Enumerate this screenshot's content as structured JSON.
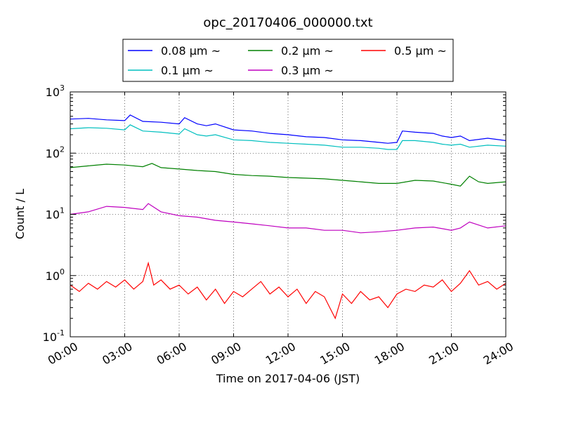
{
  "chart_data": {
    "type": "line",
    "title": "opc_20170406_000000.txt",
    "xlabel": "Time on 2017-04-06 (JST)",
    "ylabel": "Count / L",
    "x_ticks": [
      "00:00",
      "03:00",
      "06:00",
      "09:00",
      "12:00",
      "15:00",
      "18:00",
      "21:00",
      "24:00"
    ],
    "xlim_hours": [
      0,
      24
    ],
    "y_scale": "log",
    "ylim": [
      0.1,
      1000
    ],
    "y_ticks": [
      {
        "value": 0.1,
        "base": "10",
        "exp": "-1"
      },
      {
        "value": 1,
        "base": "10",
        "exp": "0"
      },
      {
        "value": 10,
        "base": "10",
        "exp": "1"
      },
      {
        "value": 100,
        "base": "10",
        "exp": "2"
      },
      {
        "value": 1000,
        "base": "10",
        "exp": "3"
      }
    ],
    "grid": true,
    "legend": {
      "placement": "top-center",
      "entries": [
        {
          "label": "0.08 μm ~",
          "color": "#0000ff"
        },
        {
          "label": "0.2 μm ~",
          "color": "#008000"
        },
        {
          "label": "0.5 μm ~",
          "color": "#ff0000"
        },
        {
          "label": "0.1 μm ~",
          "color": "#00bfbf"
        },
        {
          "label": "0.3 μm ~",
          "color": "#bf00bf"
        }
      ]
    },
    "series": [
      {
        "name": "0.08 μm ~",
        "color": "#0000ff",
        "x": [
          0,
          1,
          2,
          3,
          3.3,
          4,
          5,
          6,
          6.3,
          7,
          7.5,
          8,
          9,
          10,
          11,
          12,
          13,
          14,
          15,
          16,
          17,
          17.5,
          18,
          18.3,
          19,
          20,
          20.5,
          21,
          21.5,
          22,
          23,
          24
        ],
        "y": [
          360,
          370,
          350,
          340,
          420,
          330,
          320,
          300,
          380,
          300,
          280,
          300,
          240,
          230,
          210,
          200,
          185,
          180,
          165,
          160,
          150,
          145,
          150,
          230,
          220,
          210,
          190,
          180,
          190,
          160,
          175,
          160
        ]
      },
      {
        "name": "0.1 μm ~",
        "color": "#00bfbf",
        "x": [
          0,
          1,
          2,
          3,
          3.3,
          4,
          5,
          6,
          6.3,
          7,
          7.5,
          8,
          9,
          10,
          11,
          12,
          13,
          14,
          15,
          16,
          17,
          17.5,
          18,
          18.3,
          19,
          20,
          20.5,
          21,
          21.5,
          22,
          23,
          24
        ],
        "y": [
          250,
          260,
          255,
          240,
          290,
          230,
          220,
          205,
          250,
          200,
          190,
          200,
          165,
          160,
          150,
          145,
          140,
          135,
          125,
          125,
          120,
          115,
          115,
          160,
          160,
          150,
          140,
          135,
          140,
          125,
          135,
          130
        ]
      },
      {
        "name": "0.2 μm ~",
        "color": "#008000",
        "x": [
          0,
          1,
          2,
          3,
          4,
          4.5,
          5,
          6,
          7,
          8,
          9,
          10,
          11,
          12,
          13,
          14,
          15,
          16,
          17,
          18,
          19,
          20,
          21,
          21.5,
          22,
          22.5,
          23,
          24
        ],
        "y": [
          58,
          62,
          66,
          64,
          60,
          68,
          58,
          55,
          52,
          50,
          45,
          43,
          42,
          40,
          39,
          38,
          36,
          34,
          32,
          32,
          36,
          35,
          31,
          29,
          42,
          34,
          32,
          34
        ]
      },
      {
        "name": "0.3 μm ~",
        "color": "#bf00bf",
        "x": [
          0,
          1,
          2,
          3,
          4,
          4.3,
          5,
          6,
          7,
          8,
          9,
          10,
          11,
          12,
          13,
          14,
          15,
          16,
          17,
          18,
          19,
          20,
          21,
          21.5,
          22,
          23,
          24
        ],
        "y": [
          10,
          11,
          13.5,
          13,
          12,
          15,
          11,
          9.5,
          9,
          8,
          7.5,
          7,
          6.5,
          6,
          6,
          5.5,
          5.5,
          5,
          5.2,
          5.5,
          6,
          6.2,
          5.5,
          6,
          7.5,
          6,
          6.5
        ]
      },
      {
        "name": "0.5 μm ~",
        "color": "#ff0000",
        "x": [
          0,
          0.5,
          1,
          1.5,
          2,
          2.5,
          3,
          3.5,
          4,
          4.3,
          4.6,
          5,
          5.5,
          6,
          6.5,
          7,
          7.5,
          8,
          8.5,
          9,
          9.5,
          10,
          10.5,
          11,
          11.5,
          12,
          12.5,
          13,
          13.5,
          14,
          14.3,
          14.6,
          15,
          15.5,
          16,
          16.5,
          17,
          17.5,
          18,
          18.5,
          19,
          19.5,
          20,
          20.5,
          21,
          21.5,
          22,
          22.5,
          23,
          23.5,
          24
        ],
        "y": [
          0.7,
          0.55,
          0.75,
          0.6,
          0.8,
          0.65,
          0.85,
          0.6,
          0.8,
          1.6,
          0.7,
          0.85,
          0.6,
          0.7,
          0.5,
          0.65,
          0.4,
          0.6,
          0.35,
          0.55,
          0.45,
          0.6,
          0.8,
          0.5,
          0.65,
          0.45,
          0.6,
          0.35,
          0.55,
          0.45,
          0.3,
          0.2,
          0.5,
          0.35,
          0.55,
          0.4,
          0.45,
          0.3,
          0.5,
          0.6,
          0.55,
          0.7,
          0.65,
          0.85,
          0.55,
          0.75,
          1.2,
          0.7,
          0.8,
          0.6,
          0.75
        ]
      }
    ]
  }
}
